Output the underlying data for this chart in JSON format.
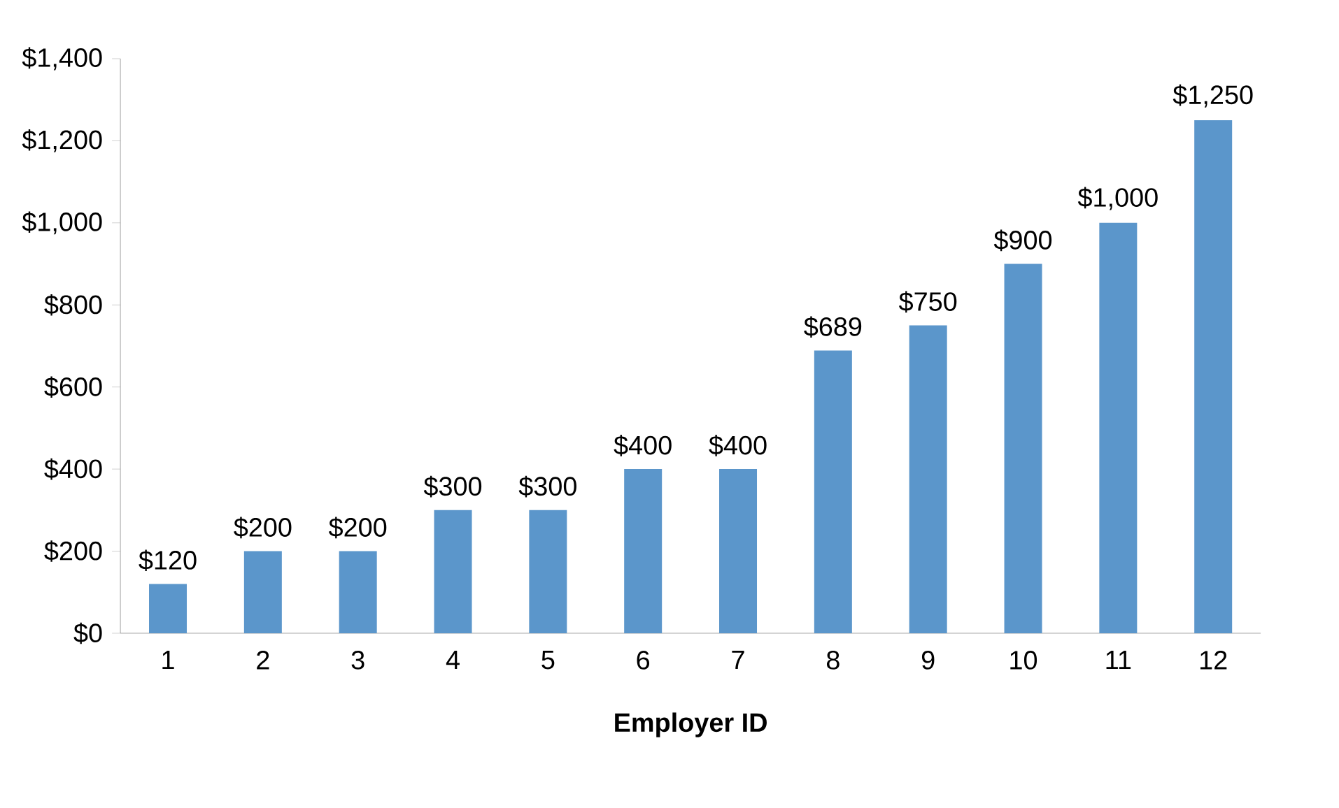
{
  "chart_data": {
    "type": "bar",
    "xlabel": "Employer ID",
    "categories": [
      "1",
      "2",
      "3",
      "4",
      "5",
      "6",
      "7",
      "8",
      "9",
      "10",
      "11",
      "12"
    ],
    "values": [
      120,
      200,
      200,
      300,
      300,
      400,
      400,
      689,
      750,
      900,
      1000,
      1250
    ],
    "value_labels": [
      "$120",
      "$200",
      "$200",
      "$300",
      "$300",
      "$400",
      "$400",
      "$689",
      "$750",
      "$900",
      "$1,000",
      "$1,250"
    ],
    "color": "#5b96cb",
    "ylim": [
      0,
      1400
    ],
    "yticks": [
      {
        "value": 0,
        "label": "$0"
      },
      {
        "value": 200,
        "label": "$200"
      },
      {
        "value": 400,
        "label": "$400"
      },
      {
        "value": 600,
        "label": "$600"
      },
      {
        "value": 800,
        "label": "$800"
      },
      {
        "value": 1000,
        "label": "$1,000"
      },
      {
        "value": 1200,
        "label": "$1,200"
      },
      {
        "value": 1400,
        "label": "$1,400"
      }
    ],
    "grid": false
  }
}
